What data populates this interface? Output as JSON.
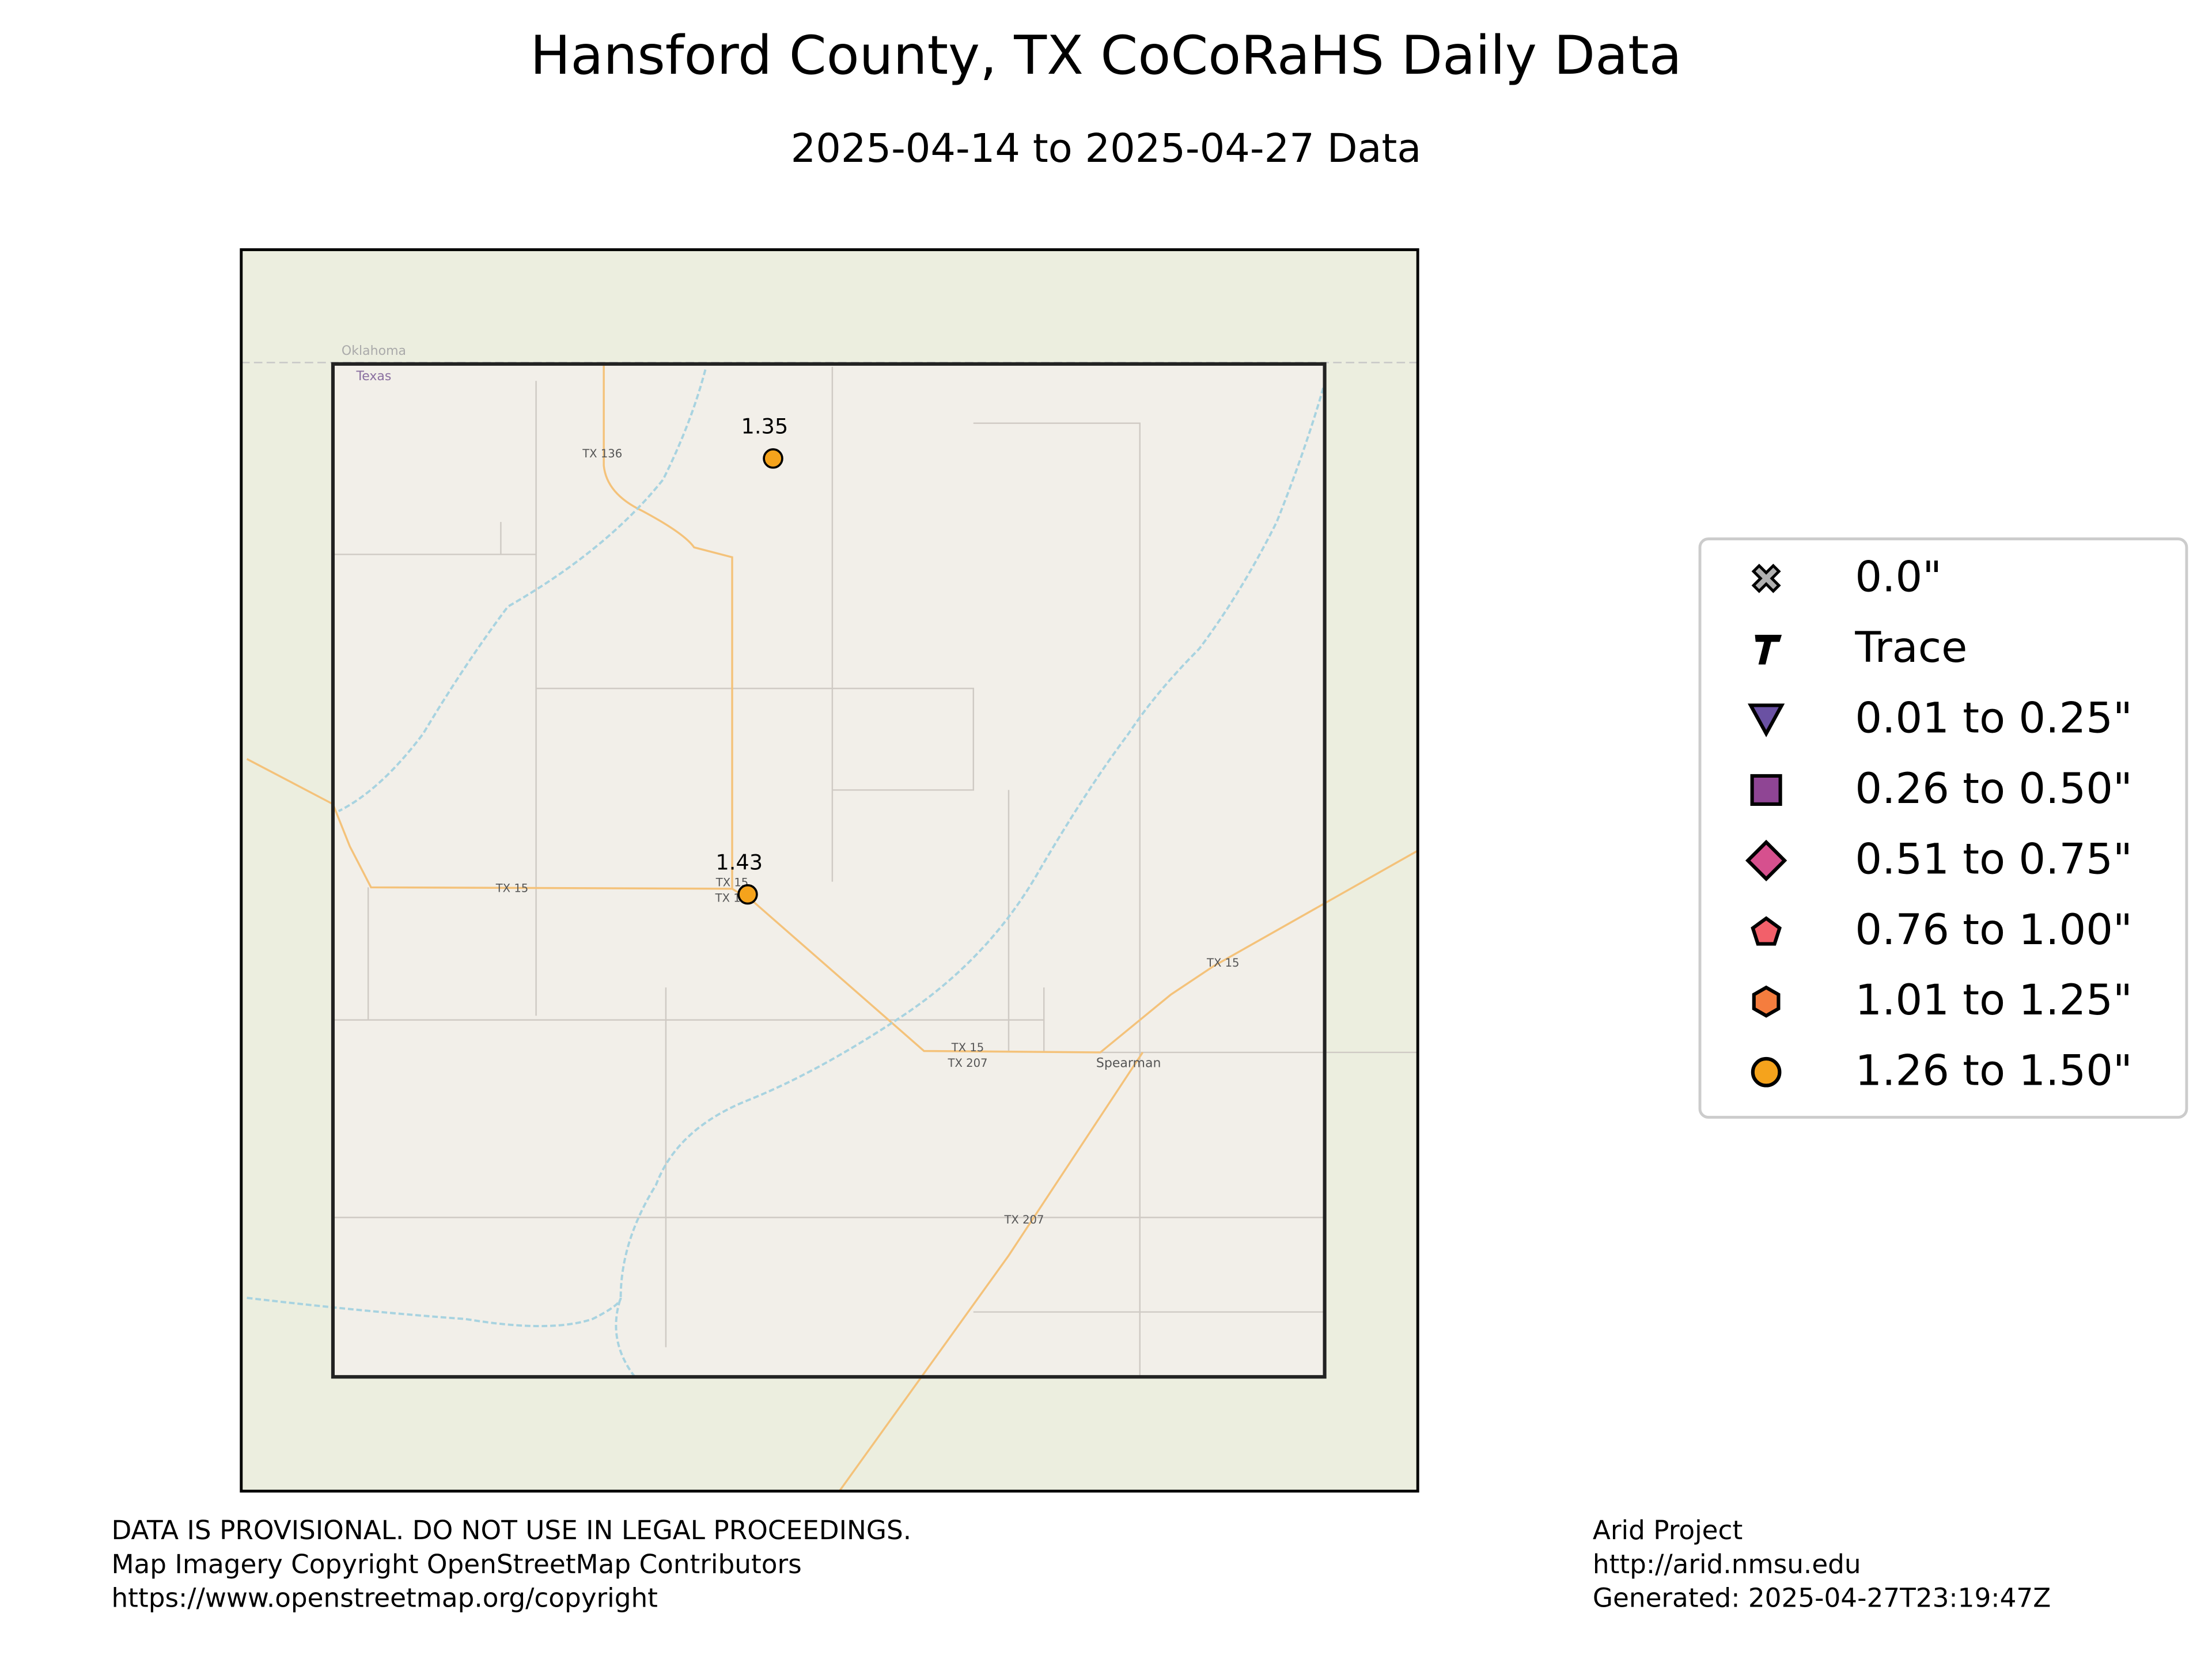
{
  "title": "Hansford County, TX CoCoRaHS Daily Data",
  "subtitle": "2025-04-14 to 2025-04-27 Data",
  "map_labels": [
    "Oklahoma",
    "Texas",
    "TX 136",
    "TX 15",
    "TX 15",
    "TX 1",
    "TX 15",
    "TX 15",
    "TX 207",
    "TX 207",
    "Spearman"
  ],
  "stations": [
    {
      "value": 1.35,
      "color": "#f5a31c"
    },
    {
      "value": 1.43,
      "color": "#f5a31c"
    }
  ],
  "legend": [
    {
      "name": "0.0\"",
      "color": "#b0b0b0"
    },
    {
      "name": "Trace",
      "color": "#000000"
    },
    {
      "name": "0.01 to 0.25\"",
      "color": "#6a51a3"
    },
    {
      "name": "0.26 to 0.50\"",
      "color": "#8f4594"
    },
    {
      "name": "0.51 to 0.75\"",
      "color": "#d6508e"
    },
    {
      "name": "0.76 to 1.00\"",
      "color": "#f2606a"
    },
    {
      "name": "1.01 to 1.25\"",
      "color": "#f57d3e"
    },
    {
      "name": "1.26 to 1.50\"",
      "color": "#f5a31c"
    }
  ],
  "footer_left": [
    "DATA IS PROVISIONAL. DO NOT USE IN LEGAL PROCEEDINGS.",
    "Map Imagery Copyright OpenStreetMap Contributors",
    "https://www.openstreetmap.org/copyright"
  ],
  "footer_right": [
    "Arid Project",
    "http://arid.nmsu.edu",
    "Generated: 2025-04-27T23:19:47Z"
  ]
}
